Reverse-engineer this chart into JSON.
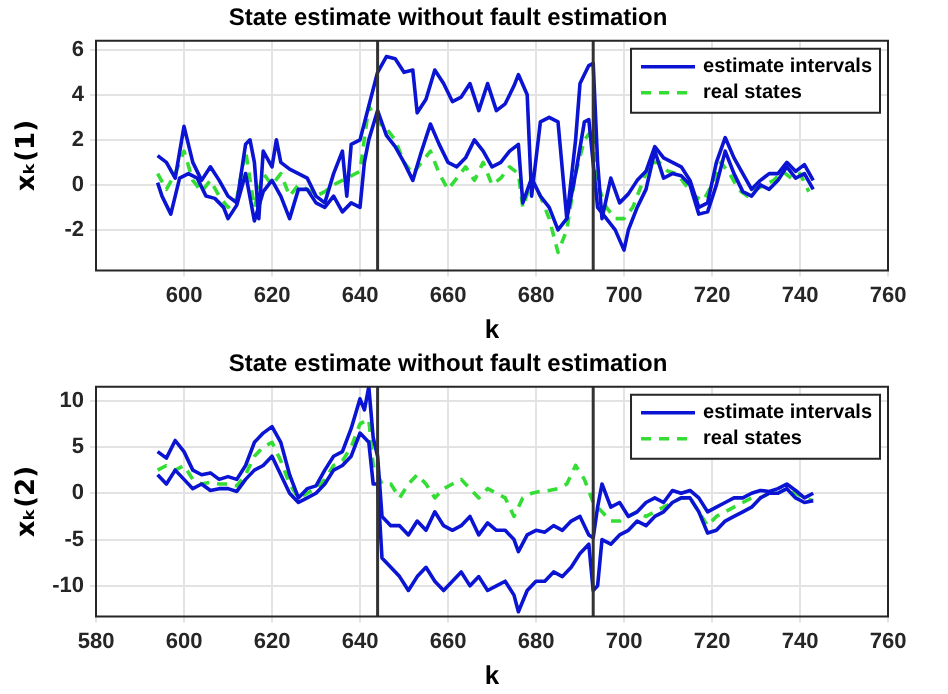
{
  "chart_data": [
    {
      "type": "line",
      "title": "State estimate without fault estimation",
      "xlabel": "k",
      "ylabel": "xₖ(1)",
      "xlim": [
        580,
        760
      ],
      "xticks": [
        600,
        620,
        640,
        660,
        680,
        700,
        720,
        740,
        760
      ],
      "ylim": [
        -3.8,
        6.4
      ],
      "yticks": [
        -2,
        0,
        2,
        4,
        6
      ],
      "grid": true,
      "legend": "top right",
      "marker": "none",
      "ref_lines": [
        {
          "axis": "x",
          "value": 644,
          "color": "#333333"
        },
        {
          "axis": "x",
          "value": 693,
          "color": "#333333"
        }
      ],
      "series": [
        {
          "name": "estimate intervals",
          "color": "#0a14d2",
          "line_style": "solid",
          "x": [
            594,
            596,
            598,
            600,
            602,
            604,
            606,
            608,
            610,
            612,
            614,
            615,
            616,
            617,
            618,
            620,
            621,
            622,
            624,
            626,
            628,
            630,
            632,
            634,
            636,
            637,
            638,
            640,
            642,
            644,
            646,
            648,
            650,
            652,
            653,
            655,
            657,
            659,
            661,
            663,
            665,
            667,
            669,
            671,
            673,
            675,
            676,
            678,
            679,
            681,
            683,
            685,
            687,
            689,
            690,
            692,
            693,
            694,
            695,
            697,
            699,
            701,
            703,
            705,
            707,
            709,
            711,
            713,
            715,
            717,
            719,
            721,
            723,
            725,
            727,
            729,
            731,
            733,
            735,
            737,
            739,
            741,
            743
          ],
          "values": [
            1.3,
            1.0,
            0.3,
            2.6,
            1.0,
            0.2,
            0.8,
            0.2,
            -0.5,
            -0.8,
            1.8,
            2.0,
            1.0,
            -1.5,
            1.5,
            0.8,
            2.0,
            1.0,
            0.7,
            0.5,
            0.3,
            -0.5,
            -0.8,
            0.5,
            1.5,
            -0.5,
            1.8,
            2.0,
            3.5,
            5.0,
            5.7,
            5.6,
            5.0,
            5.1,
            3.2,
            3.8,
            5.1,
            4.5,
            3.7,
            3.9,
            4.5,
            3.3,
            4.5,
            3.3,
            3.6,
            4.4,
            4.9,
            4.0,
            -0.5,
            2.8,
            3.0,
            2.8,
            -1.5,
            2.0,
            4.5,
            5.3,
            5.4,
            1.0,
            -1.5,
            0.3,
            -0.8,
            -0.4,
            0.2,
            0.6,
            1.7,
            1.2,
            1.0,
            0.8,
            0.2,
            -1.0,
            -0.8,
            1.0,
            2.1,
            1.2,
            0.5,
            -0.2,
            0.2,
            0.5,
            0.5,
            1.0,
            0.6,
            0.9,
            0.2
          ]
        },
        {
          "color": "#0a14d2",
          "line_style": "solid",
          "x": [
            594,
            595,
            597,
            599,
            601,
            603,
            605,
            607,
            609,
            610,
            612,
            614,
            616,
            618,
            620,
            622,
            624,
            626,
            628,
            630,
            632,
            634,
            636,
            638,
            640,
            641,
            642,
            644,
            646,
            648,
            650,
            652,
            654,
            656,
            658,
            660,
            662,
            664,
            666,
            668,
            670,
            672,
            674,
            676,
            677,
            679,
            681,
            683,
            685,
            687,
            689,
            691,
            692,
            694,
            696,
            698,
            700,
            701,
            703,
            705,
            707,
            709,
            711,
            713,
            715,
            717,
            719,
            721,
            723,
            725,
            727,
            729,
            731,
            733,
            735,
            737,
            739,
            741,
            743
          ],
          "values": [
            0.1,
            -0.5,
            -1.3,
            0.3,
            0.5,
            0.3,
            -0.5,
            -0.6,
            -1.0,
            -1.5,
            -0.9,
            0.5,
            -1.6,
            -0.3,
            0.2,
            -0.5,
            -1.5,
            -0.2,
            -0.2,
            -0.8,
            -1.0,
            -0.5,
            -1.2,
            -0.8,
            -1.0,
            1.0,
            2.0,
            3.3,
            2.2,
            1.7,
            1.0,
            0.2,
            1.5,
            2.7,
            1.8,
            1.0,
            0.8,
            1.2,
            2.0,
            1.5,
            0.8,
            1.0,
            1.5,
            1.8,
            -0.8,
            0.3,
            -0.5,
            -1.0,
            -2.0,
            -1.5,
            0.5,
            2.8,
            2.9,
            -1.0,
            -1.5,
            -2.0,
            -2.9,
            -2.0,
            -1.0,
            -0.2,
            1.5,
            0.3,
            0.5,
            0.4,
            0.0,
            -1.3,
            -1.2,
            0.0,
            1.5,
            0.5,
            -0.3,
            -0.5,
            0.0,
            -0.2,
            0.2,
            0.8,
            0.3,
            0.5,
            -0.2
          ]
        },
        {
          "name": "real states",
          "color": "#33dd33",
          "line_style": "dashed",
          "x": [
            594,
            596,
            598,
            600,
            602,
            604,
            606,
            608,
            610,
            612,
            614,
            616,
            618,
            620,
            622,
            624,
            626,
            628,
            630,
            632,
            634,
            636,
            638,
            640,
            642,
            644,
            646,
            648,
            650,
            652,
            654,
            656,
            658,
            660,
            662,
            664,
            666,
            668,
            670,
            672,
            674,
            676,
            677,
            679,
            681,
            683,
            685,
            687,
            689,
            691,
            693,
            694,
            696,
            698,
            700,
            702,
            704,
            706,
            708,
            710,
            712,
            714,
            716,
            718,
            720,
            722,
            724,
            726,
            728,
            730,
            732,
            734,
            736,
            738,
            740,
            742
          ],
          "values": [
            0.5,
            -0.2,
            0.5,
            1.5,
            0.2,
            -0.3,
            0.2,
            -0.5,
            -1.0,
            -0.6,
            1.5,
            -1.0,
            0.5,
            0.0,
            0.5,
            -0.5,
            0.0,
            -0.2,
            -0.5,
            -0.3,
            0.0,
            0.2,
            0.4,
            0.6,
            3.5,
            2.8,
            2.5,
            2.0,
            1.0,
            0.5,
            1.0,
            1.5,
            0.5,
            -0.2,
            0.3,
            0.8,
            0.2,
            1.0,
            0.0,
            0.3,
            0.8,
            0.5,
            -1.0,
            0.2,
            -0.5,
            -1.5,
            -3.0,
            -2.0,
            0.5,
            2.0,
            2.5,
            0.0,
            -1.0,
            -1.5,
            -1.5,
            -1.0,
            0.0,
            1.0,
            1.0,
            0.6,
            0.5,
            0.0,
            -0.5,
            -0.7,
            0.0,
            1.0,
            0.5,
            -0.2,
            -0.5,
            -0.2,
            0.0,
            0.2,
            0.6,
            0.3,
            0.5,
            -0.3
          ]
        }
      ]
    },
    {
      "type": "line",
      "title": "State estimate without fault estimation",
      "xlabel": "k",
      "ylabel": "xₖ(2)",
      "xlim": [
        580,
        760
      ],
      "xticks": [
        580,
        600,
        620,
        640,
        660,
        680,
        700,
        720,
        740,
        760
      ],
      "ylim": [
        -13.3,
        11.5
      ],
      "yticks": [
        -10,
        -5,
        0,
        5,
        10
      ],
      "grid": true,
      "legend": "top right",
      "marker": "none",
      "ref_lines": [
        {
          "axis": "x",
          "value": 644,
          "color": "#333333"
        },
        {
          "axis": "x",
          "value": 693,
          "color": "#333333"
        }
      ],
      "series": [
        {
          "name": "estimate intervals",
          "color": "#0a14d2",
          "line_style": "solid",
          "x": [
            594,
            596,
            598,
            600,
            602,
            604,
            606,
            608,
            610,
            612,
            614,
            616,
            618,
            620,
            622,
            624,
            626,
            628,
            630,
            632,
            634,
            636,
            638,
            640,
            641,
            642,
            643,
            644,
            645,
            647,
            649,
            651,
            653,
            655,
            657,
            659,
            661,
            663,
            665,
            667,
            669,
            671,
            673,
            675,
            676,
            678,
            680,
            682,
            684,
            686,
            688,
            690,
            692,
            693,
            694,
            695,
            697,
            699,
            701,
            703,
            705,
            707,
            709,
            711,
            713,
            715,
            717,
            719,
            721,
            723,
            725,
            727,
            729,
            731,
            733,
            735,
            737,
            739,
            741,
            743
          ],
          "values": [
            4.5,
            3.8,
            5.7,
            4.5,
            2.5,
            2.0,
            2.2,
            1.5,
            1.8,
            1.5,
            3.0,
            5.5,
            6.5,
            7.2,
            5.5,
            2.0,
            -0.5,
            0.5,
            0.8,
            2.5,
            4.0,
            4.5,
            7.0,
            10.2,
            9.0,
            11.5,
            6.0,
            4.0,
            -2.5,
            -3.5,
            -3.5,
            -4.5,
            -3.0,
            -4.0,
            -2.0,
            -3.5,
            -4.0,
            -3.5,
            -2.5,
            -4.5,
            -3.2,
            -4.0,
            -4.0,
            -5.0,
            -6.3,
            -4.5,
            -4.0,
            -4.2,
            -3.5,
            -4.0,
            -3.0,
            -2.5,
            -4.5,
            -4.8,
            -1.5,
            1.0,
            -1.5,
            -1.0,
            -2.5,
            -2.0,
            -1.0,
            -0.5,
            -1.0,
            0.3,
            0.0,
            0.3,
            -0.5,
            -2.0,
            -1.5,
            -1.0,
            -0.5,
            -0.5,
            0.0,
            0.3,
            0.2,
            0.5,
            1.0,
            0.3,
            -0.5,
            0.0
          ]
        },
        {
          "color": "#0a14d2",
          "line_style": "solid",
          "x": [
            594,
            596,
            598,
            600,
            602,
            604,
            606,
            608,
            610,
            612,
            614,
            616,
            618,
            620,
            622,
            624,
            626,
            628,
            630,
            632,
            634,
            636,
            638,
            640,
            642,
            643,
            644,
            645,
            647,
            649,
            651,
            653,
            655,
            657,
            659,
            661,
            663,
            665,
            667,
            669,
            671,
            673,
            675,
            676,
            678,
            680,
            682,
            684,
            686,
            688,
            690,
            692,
            693,
            694,
            695,
            697,
            699,
            701,
            703,
            705,
            707,
            709,
            711,
            713,
            715,
            717,
            719,
            721,
            723,
            725,
            727,
            729,
            731,
            733,
            735,
            737,
            739,
            741,
            743
          ],
          "values": [
            2.0,
            1.0,
            2.5,
            1.5,
            0.5,
            1.0,
            0.3,
            0.5,
            0.5,
            0.2,
            1.5,
            2.5,
            3.0,
            4.0,
            2.0,
            0.0,
            -1.0,
            -0.5,
            0.0,
            1.0,
            2.5,
            3.0,
            4.0,
            6.5,
            5.5,
            1.0,
            1.0,
            -7.0,
            -8.0,
            -9.0,
            -10.5,
            -9.0,
            -8.0,
            -9.5,
            -10.5,
            -9.5,
            -8.5,
            -10.0,
            -9.0,
            -10.5,
            -10.0,
            -9.5,
            -11.0,
            -12.8,
            -10.5,
            -9.5,
            -9.5,
            -8.5,
            -9.0,
            -8.0,
            -6.5,
            -5.5,
            -10.5,
            -10.0,
            -5.0,
            -5.5,
            -4.5,
            -4.0,
            -3.0,
            -3.5,
            -2.5,
            -2.0,
            -1.0,
            -0.5,
            -0.5,
            -2.0,
            -4.3,
            -4.0,
            -3.0,
            -2.5,
            -2.0,
            -1.5,
            -0.5,
            0.0,
            0.0,
            0.5,
            -0.5,
            -1.0,
            -0.8
          ]
        },
        {
          "name": "real states",
          "color": "#33dd33",
          "line_style": "dashed",
          "x": [
            594,
            596,
            598,
            600,
            602,
            604,
            606,
            608,
            610,
            612,
            614,
            616,
            618,
            620,
            622,
            624,
            626,
            628,
            630,
            632,
            634,
            636,
            638,
            640,
            642,
            643,
            645,
            647,
            649,
            651,
            653,
            655,
            657,
            659,
            661,
            663,
            665,
            667,
            669,
            671,
            673,
            675,
            677,
            679,
            681,
            683,
            685,
            687,
            689,
            691,
            693,
            695,
            697,
            699,
            701,
            703,
            705,
            707,
            709,
            711,
            713,
            715,
            717,
            719,
            721,
            723,
            725,
            727,
            729,
            731,
            733,
            735,
            737,
            739,
            741,
            743
          ],
          "values": [
            2.5,
            3.0,
            2.5,
            3.0,
            1.5,
            1.0,
            1.2,
            1.0,
            1.0,
            0.8,
            2.0,
            4.0,
            5.0,
            5.5,
            3.5,
            1.0,
            -0.5,
            0.0,
            0.5,
            1.5,
            3.0,
            3.5,
            5.0,
            7.5,
            8.0,
            3.0,
            1.0,
            1.0,
            -0.5,
            1.0,
            2.0,
            1.0,
            -0.5,
            0.5,
            1.0,
            1.5,
            0.5,
            -0.5,
            0.5,
            0.0,
            -0.5,
            -2.5,
            -0.5,
            0.0,
            0.2,
            0.3,
            0.5,
            1.0,
            3.0,
            1.5,
            -1.0,
            -2.0,
            -3.0,
            -3.0,
            -2.5,
            -2.0,
            -2.5,
            -2.0,
            -1.5,
            -1.0,
            -0.5,
            -0.5,
            -2.0,
            -3.5,
            -2.5,
            -2.0,
            -1.5,
            -1.0,
            -0.5,
            -0.5,
            0.0,
            0.0,
            0.5,
            0.0,
            -0.5,
            -0.8
          ]
        }
      ]
    }
  ]
}
